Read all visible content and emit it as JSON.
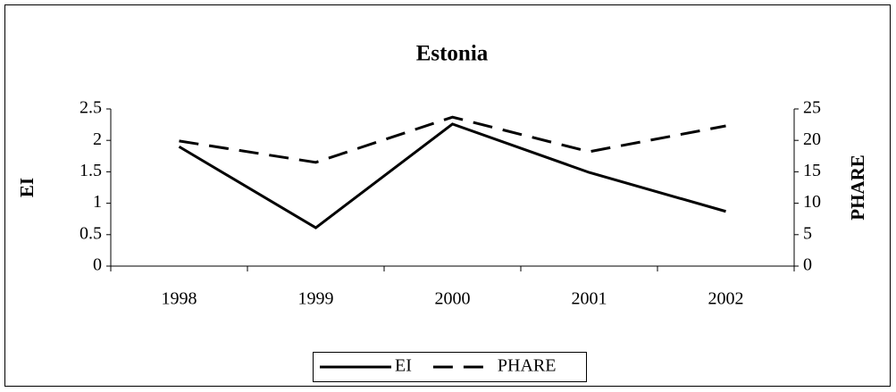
{
  "chart_data": {
    "type": "line",
    "title": "Estonia",
    "categories": [
      "1998",
      "1999",
      "2000",
      "2001",
      "2002"
    ],
    "series": [
      {
        "name": "EI",
        "color": "#000000",
        "line_style": "solid",
        "axis": "y",
        "values": [
          1.9,
          0.61,
          2.26,
          1.49,
          0.87
        ]
      },
      {
        "name": "PHARE",
        "color": "#000000",
        "line_style": "dashed",
        "axis": "y2",
        "values": [
          19.9,
          16.5,
          23.7,
          18.2,
          22.3
        ]
      }
    ],
    "ylabel": "EI",
    "y2label": "PHARE",
    "ylim": [
      0,
      2.5
    ],
    "yticks": [
      0,
      0.5,
      1,
      1.5,
      2,
      2.5
    ],
    "y2lim": [
      0,
      25
    ],
    "y2ticks": [
      0,
      5,
      10,
      15,
      20,
      25
    ],
    "grid": false,
    "legend": "bottom"
  }
}
